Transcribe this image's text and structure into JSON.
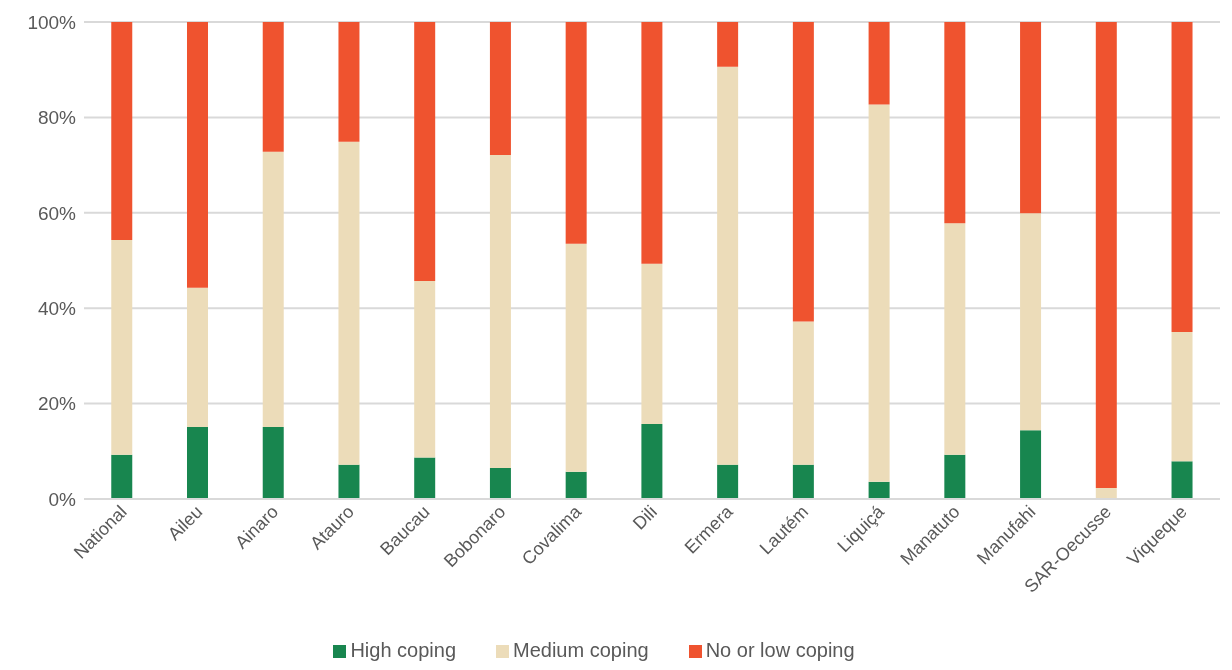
{
  "chart_data": {
    "type": "bar",
    "stacked": true,
    "categories": [
      "National",
      "Aileu",
      "Ainaro",
      "Atauro",
      "Baucau",
      "Bobonaro",
      "Covalima",
      "Dili",
      "Ermera",
      "Lautém",
      "Liquiçá",
      "Manatuto",
      "Manufahi",
      "SAR-Oecusse",
      "Viqueque"
    ],
    "series": [
      {
        "name": "High coping",
        "color": "#18864f",
        "values": [
          9.3,
          15.1,
          15.1,
          7.2,
          8.7,
          6.5,
          5.7,
          15.7,
          7.2,
          7.2,
          3.6,
          9.3,
          14.4,
          0,
          7.9
        ]
      },
      {
        "name": "Medium coping",
        "color": "#ecdcb9",
        "values": [
          45.0,
          29.2,
          57.7,
          67.7,
          37.0,
          65.6,
          47.8,
          33.6,
          83.4,
          30.0,
          79.1,
          48.5,
          45.5,
          2.3,
          27.1
        ]
      },
      {
        "name": "No or low coping",
        "color": "#ef532f",
        "values": [
          45.7,
          55.7,
          27.2,
          25.1,
          54.3,
          27.9,
          46.5,
          50.7,
          9.4,
          62.8,
          17.3,
          42.2,
          40.1,
          97.7,
          65.0
        ]
      }
    ],
    "ylim": [
      0,
      100
    ],
    "yticks": [
      {
        "value": 0,
        "label": "0%"
      },
      {
        "value": 20,
        "label": "20%"
      },
      {
        "value": 40,
        "label": "40%"
      },
      {
        "value": 60,
        "label": "60%"
      },
      {
        "value": 80,
        "label": "80%"
      },
      {
        "value": 100,
        "label": "100%"
      }
    ],
    "grid": "y",
    "legend": "bottom"
  }
}
